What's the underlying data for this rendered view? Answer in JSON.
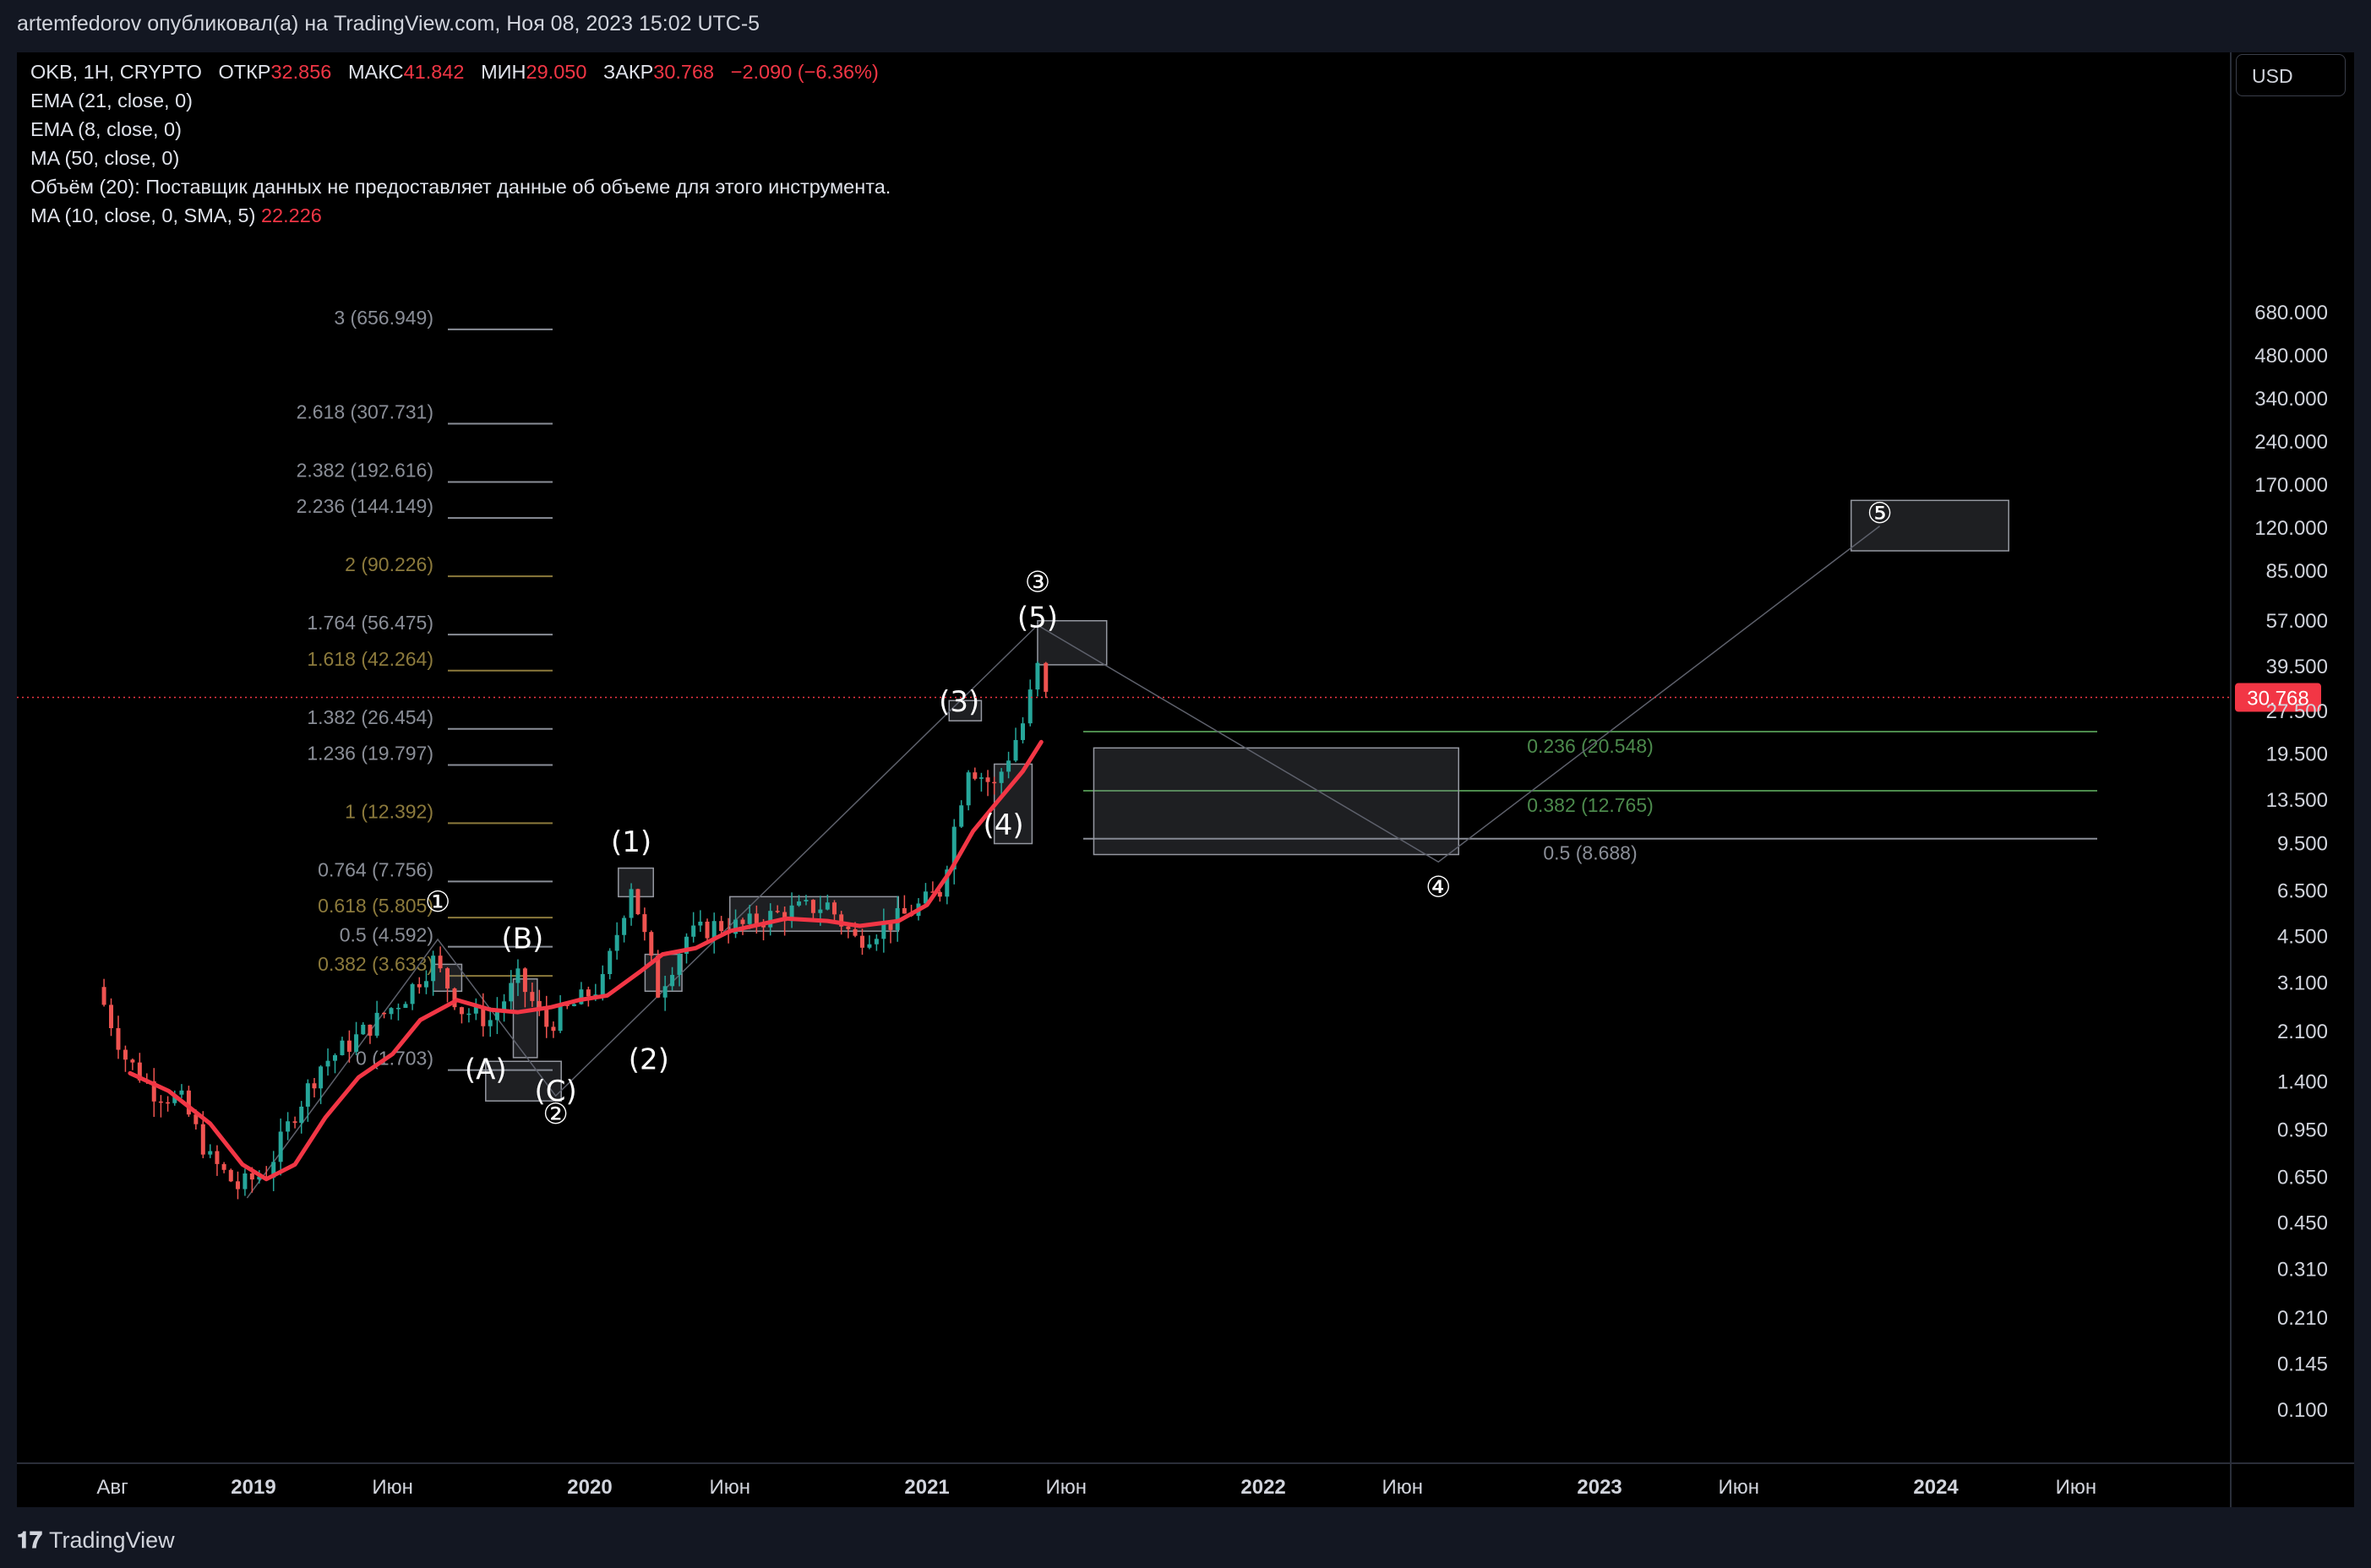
{
  "header": {
    "publisher": "artemfedorov опубликовал(а) на TradingView.com, Ноя 08, 2023 15:02 UTC-5"
  },
  "legend": {
    "symbol": "OKB, 1Н, CRYPTO",
    "open_label": "ОТКР",
    "open": "32.856",
    "high_label": "МАКС",
    "high": "41.842",
    "low_label": "МИН",
    "low": "29.050",
    "close_label": "ЗАКР",
    "close": "30.768",
    "change": "−2.090 (−6.36%)",
    "ind1": "EMA (21, close, 0)",
    "ind2": "EMA (8, close, 0)",
    "ind3": "MA (50, close, 0)",
    "ind4": "Объём (20): Поставщик данных не предоставляет данные об объеме для этого инструмента.",
    "ind5": "MA (10, close, 0, SMA, 5)",
    "ind5_value": "22.226"
  },
  "currency_button": "USD",
  "footer": {
    "logo_text": "TradingView"
  },
  "colors": {
    "up": "#26a69a",
    "down": "#ef5350",
    "ma": "#f23645",
    "fib_gray": "#8a8e97",
    "fib_gold": "#8c7a3c",
    "fib_green": "#4c8a4c"
  },
  "chart_data": {
    "type": "candlestick",
    "price_scale": "log",
    "y_ticks": [
      "680.000",
      "480.000",
      "340.000",
      "240.000",
      "170.000",
      "120.000",
      "85.000",
      "57.000",
      "39.500",
      "27.500",
      "19.500",
      "13.500",
      "9.500",
      "6.500",
      "4.500",
      "3.100",
      "2.100",
      "1.400",
      "0.950",
      "0.650",
      "0.450",
      "0.310",
      "0.210",
      "0.145",
      "0.100"
    ],
    "x_ticks": [
      {
        "label": "Авг",
        "date": "2018-08-01",
        "bold": false
      },
      {
        "label": "2019",
        "date": "2019-01-01",
        "bold": true
      },
      {
        "label": "Июн",
        "date": "2019-06-01",
        "bold": false
      },
      {
        "label": "2020",
        "date": "2020-01-01",
        "bold": true
      },
      {
        "label": "Июн",
        "date": "2020-06-01",
        "bold": false
      },
      {
        "label": "2021",
        "date": "2021-01-01",
        "bold": true
      },
      {
        "label": "Июн",
        "date": "2021-06-01",
        "bold": false
      },
      {
        "label": "2022",
        "date": "2022-01-01",
        "bold": true
      },
      {
        "label": "Июн",
        "date": "2022-06-01",
        "bold": false
      },
      {
        "label": "2023",
        "date": "2023-01-01",
        "bold": true
      },
      {
        "label": "Июн",
        "date": "2023-06-01",
        "bold": false
      },
      {
        "label": "2024",
        "date": "2024-01-01",
        "bold": true
      },
      {
        "label": "Июн",
        "date": "2024-06-01",
        "bold": false
      }
    ],
    "last_price": "30.768",
    "close_series": [
      [
        "2018-07-15",
        3.0
      ],
      [
        "2018-08-15",
        1.7
      ],
      [
        "2018-09-15",
        1.3
      ],
      [
        "2018-10-15",
        1.2
      ],
      [
        "2018-11-15",
        0.75
      ],
      [
        "2018-12-15",
        0.6
      ],
      [
        "2019-01-15",
        0.68
      ],
      [
        "2019-02-15",
        1.1
      ],
      [
        "2019-03-15",
        1.6
      ],
      [
        "2019-04-15",
        1.9
      ],
      [
        "2019-05-15",
        2.3
      ],
      [
        "2019-06-15",
        2.8
      ],
      [
        "2019-07-15",
        3.7
      ],
      [
        "2019-08-15",
        2.5
      ],
      [
        "2019-09-15",
        2.3
      ],
      [
        "2019-10-15",
        3.2
      ],
      [
        "2019-11-15",
        2.2
      ],
      [
        "2019-12-15",
        2.6
      ],
      [
        "2020-01-15",
        3.1
      ],
      [
        "2020-02-15",
        6.9
      ],
      [
        "2020-03-15",
        2.9
      ],
      [
        "2020-04-15",
        4.5
      ],
      [
        "2020-05-15",
        4.9
      ],
      [
        "2020-06-15",
        4.9
      ],
      [
        "2020-07-15",
        5.3
      ],
      [
        "2020-08-15",
        5.6
      ],
      [
        "2020-09-15",
        5.8
      ],
      [
        "2020-10-15",
        4.4
      ],
      [
        "2020-11-15",
        4.9
      ],
      [
        "2020-12-15",
        5.5
      ],
      [
        "2021-01-15",
        6.5
      ],
      [
        "2021-02-15",
        18
      ],
      [
        "2021-03-15",
        15
      ],
      [
        "2021-04-15",
        25
      ],
      [
        "2021-05-01",
        39
      ],
      [
        "2021-05-10",
        30.768
      ]
    ],
    "ma_series": [
      [
        "2018-08-20",
        1.5
      ],
      [
        "2018-10-01",
        1.3
      ],
      [
        "2018-11-15",
        1.0
      ],
      [
        "2018-12-20",
        0.72
      ],
      [
        "2019-01-15",
        0.64
      ],
      [
        "2019-02-15",
        0.72
      ],
      [
        "2019-03-20",
        1.05
      ],
      [
        "2019-04-25",
        1.45
      ],
      [
        "2019-06-01",
        1.75
      ],
      [
        "2019-07-01",
        2.3
      ],
      [
        "2019-08-10",
        2.7
      ],
      [
        "2019-09-15",
        2.5
      ],
      [
        "2019-10-15",
        2.45
      ],
      [
        "2019-11-20",
        2.55
      ],
      [
        "2019-12-20",
        2.7
      ],
      [
        "2020-01-20",
        2.8
      ],
      [
        "2020-02-25",
        3.4
      ],
      [
        "2020-03-20",
        3.9
      ],
      [
        "2020-04-25",
        4.1
      ],
      [
        "2020-06-01",
        4.7
      ],
      [
        "2020-08-01",
        5.2
      ],
      [
        "2020-09-15",
        5.1
      ],
      [
        "2020-10-20",
        4.9
      ],
      [
        "2020-12-01",
        5.1
      ],
      [
        "2021-01-01",
        5.8
      ],
      [
        "2021-01-25",
        7.5
      ],
      [
        "2021-02-20",
        10.5
      ],
      [
        "2021-03-20",
        13.5
      ],
      [
        "2021-04-15",
        17
      ],
      [
        "2021-05-05",
        21.5
      ]
    ],
    "fib_levels_left": [
      {
        "label": "3 (656.949)",
        "price": 656.949,
        "color": "gray"
      },
      {
        "label": "2.618 (307.731)",
        "price": 307.731,
        "color": "gray"
      },
      {
        "label": "2.382 (192.616)",
        "price": 192.616,
        "color": "gray"
      },
      {
        "label": "2.236 (144.149)",
        "price": 144.149,
        "color": "gray"
      },
      {
        "label": "2 (90.226)",
        "price": 90.226,
        "color": "gold"
      },
      {
        "label": "1.764 (56.475)",
        "price": 56.475,
        "color": "gray"
      },
      {
        "label": "1.618 (42.264)",
        "price": 42.264,
        "color": "gold"
      },
      {
        "label": "1.382 (26.454)",
        "price": 26.454,
        "color": "gray"
      },
      {
        "label": "1.236 (19.797)",
        "price": 19.797,
        "color": "gray"
      },
      {
        "label": "1 (12.392)",
        "price": 12.392,
        "color": "gold"
      },
      {
        "label": "0.764 (7.756)",
        "price": 7.756,
        "color": "gray"
      },
      {
        "label": "0.618 (5.805)",
        "price": 5.805,
        "color": "gold"
      },
      {
        "label": "0.5 (4.592)",
        "price": 4.592,
        "color": "gray"
      },
      {
        "label": "0.382 (3.633)",
        "price": 3.633,
        "color": "gold"
      },
      {
        "label": "0 (1.703)",
        "price": 1.703,
        "color": "gray"
      }
    ],
    "fib_levels_right": [
      {
        "label": "0.236 (20.548)",
        "price": 20.548,
        "color": "green"
      },
      {
        "label": "0.382 (12.765)",
        "price": 12.765,
        "color": "green"
      },
      {
        "label": "0.5 (8.688)",
        "price": 8.688,
        "color": "gray"
      }
    ],
    "wave_labels": [
      {
        "text": "①",
        "date": "2019-07-20",
        "price": 5.5
      },
      {
        "text": "(B)",
        "date": "2019-10-20",
        "price": 4.1
      },
      {
        "text": "(A)",
        "date": "2019-09-10",
        "price": 1.43
      },
      {
        "text": "(C)",
        "date": "2019-11-25",
        "price": 1.2
      },
      {
        "text": "②",
        "date": "2019-11-25",
        "price": 1.0
      },
      {
        "text": "(1)",
        "date": "2020-02-15",
        "price": 8.9
      },
      {
        "text": "(2)",
        "date": "2020-03-05",
        "price": 1.55
      },
      {
        "text": "(3)",
        "date": "2021-02-05",
        "price": 27.5
      },
      {
        "text": "(4)",
        "date": "2021-03-25",
        "price": 10.2
      },
      {
        "text": "(5)",
        "date": "2021-05-01",
        "price": 54
      },
      {
        "text": "③",
        "date": "2021-05-01",
        "price": 72
      },
      {
        "text": "④",
        "date": "2022-07-10",
        "price": 6.2
      },
      {
        "text": "⑤",
        "date": "2023-11-01",
        "price": 125
      }
    ]
  }
}
